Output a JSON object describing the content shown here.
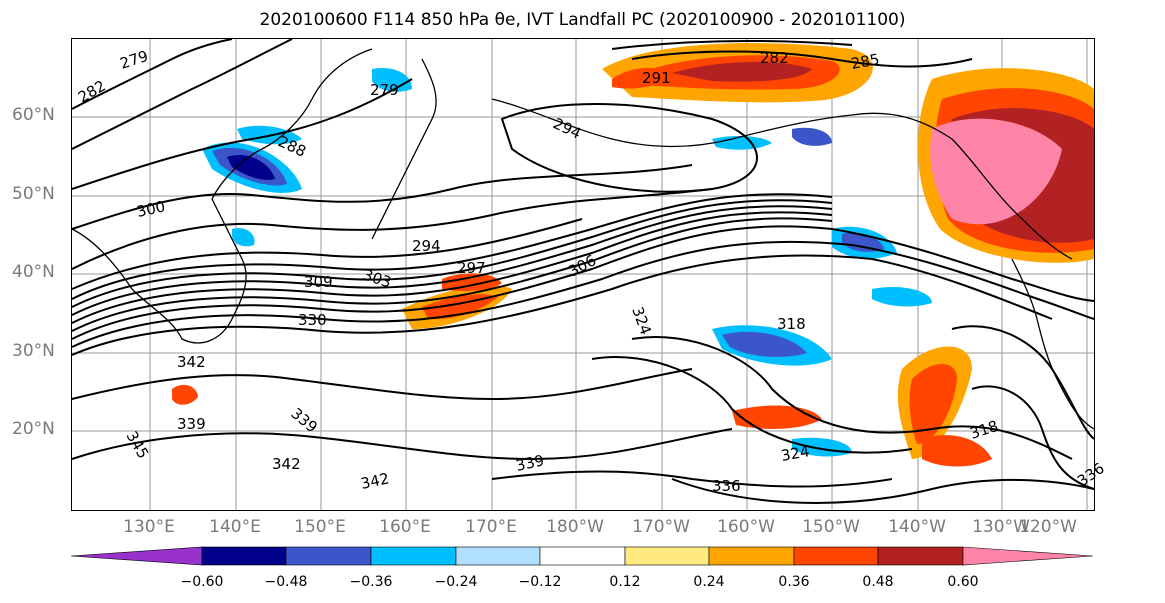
{
  "title": "2020100600 F114 850 hPa θe, IVT Landfall PC (2020100900 - 2020101100)",
  "latitude_labels": [
    "60°N",
    "50°N",
    "40°N",
    "30°N",
    "20°N"
  ],
  "longitude_labels": [
    "130°E",
    "140°E",
    "150°E",
    "160°E",
    "170°E",
    "180°W",
    "170°W",
    "160°W",
    "150°W",
    "140°W",
    "130°W",
    "120°W"
  ],
  "contour_labels": [
    "279",
    "282",
    "288",
    "300",
    "294",
    "297",
    "309",
    "303",
    "306",
    "330",
    "342",
    "339",
    "345",
    "342",
    "339",
    "342",
    "336",
    "339",
    "324",
    "318",
    "318",
    "324",
    "336",
    "291",
    "282",
    "285",
    "294",
    "279"
  ],
  "colorbar": {
    "ticks": [
      "−0.60",
      "−0.48",
      "−0.36",
      "−0.24",
      "−0.12",
      "0.12",
      "0.24",
      "0.36",
      "0.48",
      "0.60"
    ],
    "colors": [
      "#9932cc",
      "#00008b",
      "#3a56c9",
      "#00bfff",
      "#b0e0ff",
      "#ffffff",
      "#ffea80",
      "#ffa500",
      "#ff4500",
      "#b22222",
      "#ff85a8"
    ]
  }
}
